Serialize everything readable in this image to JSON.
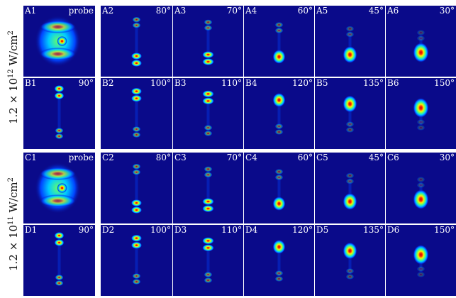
{
  "groups": [
    {
      "intensity_label": "1.2 × 10",
      "intensity_exponent": "12",
      "intensity_unit": " W/cm",
      "intensity_unit_exponent": "2",
      "rows": [
        [
          {
            "label": "A1",
            "angle": "probe",
            "kind": "probe"
          },
          {
            "label": "A2",
            "angle": "80°",
            "kind": "pair",
            "deg": 80
          },
          {
            "label": "A3",
            "angle": "70°",
            "kind": "pair",
            "deg": 70
          },
          {
            "label": "A4",
            "angle": "60°",
            "kind": "pair",
            "deg": 60
          },
          {
            "label": "A5",
            "angle": "45°",
            "kind": "pair",
            "deg": 45
          },
          {
            "label": "A6",
            "angle": "30°",
            "kind": "pair",
            "deg": 30
          }
        ],
        [
          {
            "label": "B1",
            "angle": "90°",
            "kind": "pair",
            "deg": 90
          },
          {
            "label": "B2",
            "angle": "100°",
            "kind": "pair",
            "deg": 100
          },
          {
            "label": "B3",
            "angle": "110°",
            "kind": "pair",
            "deg": 110
          },
          {
            "label": "B4",
            "angle": "120°",
            "kind": "pair",
            "deg": 120
          },
          {
            "label": "B5",
            "angle": "135°",
            "kind": "pair",
            "deg": 135
          },
          {
            "label": "B6",
            "angle": "150°",
            "kind": "pair",
            "deg": 150
          }
        ]
      ]
    },
    {
      "intensity_label": "1.2 × 10",
      "intensity_exponent": "11",
      "intensity_unit": " W/cm",
      "intensity_unit_exponent": "2",
      "rows": [
        [
          {
            "label": "C1",
            "angle": "probe",
            "kind": "probe"
          },
          {
            "label": "C2",
            "angle": "80°",
            "kind": "pair",
            "deg": 80
          },
          {
            "label": "C3",
            "angle": "70°",
            "kind": "pair",
            "deg": 70
          },
          {
            "label": "C4",
            "angle": "60°",
            "kind": "pair",
            "deg": 60
          },
          {
            "label": "C5",
            "angle": "45°",
            "kind": "pair",
            "deg": 45
          },
          {
            "label": "C6",
            "angle": "30°",
            "kind": "pair",
            "deg": 30
          }
        ],
        [
          {
            "label": "D1",
            "angle": "90°",
            "kind": "pair",
            "deg": 90
          },
          {
            "label": "D2",
            "angle": "100°",
            "kind": "pair",
            "deg": 100
          },
          {
            "label": "D3",
            "angle": "110°",
            "kind": "pair",
            "deg": 110
          },
          {
            "label": "D4",
            "angle": "120°",
            "kind": "pair",
            "deg": 120
          },
          {
            "label": "D5",
            "angle": "135°",
            "kind": "pair",
            "deg": 135
          },
          {
            "label": "D6",
            "angle": "150°",
            "kind": "pair",
            "deg": 150
          }
        ]
      ]
    }
  ],
  "colors": {
    "background": "#0a0a8a",
    "colormap": [
      "#0a0a8a",
      "#0044ff",
      "#00ccff",
      "#66ff66",
      "#ffee00",
      "#ff3300",
      "#cc0000"
    ]
  }
}
